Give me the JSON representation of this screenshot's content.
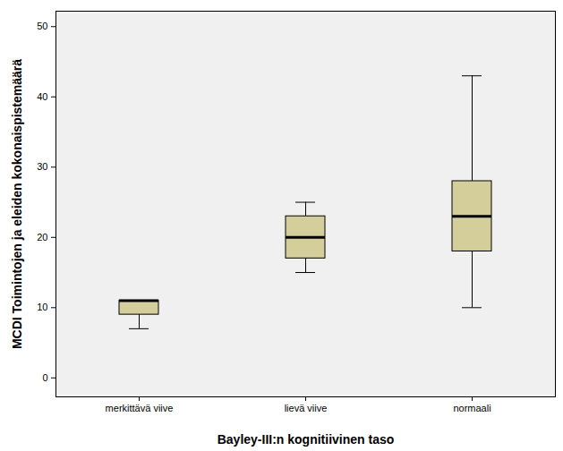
{
  "chart_data": {
    "type": "box",
    "x_label": "Bayley-III:n kognitiivinen taso",
    "y_label": "MCDI Toimintojen ja eleiden kokonaispistemäärä",
    "categories": [
      "merkittävä viive",
      "lievä viive",
      "normaali"
    ],
    "min": [
      7,
      15,
      10
    ],
    "q1": [
      9,
      17,
      18
    ],
    "median": [
      11,
      20,
      23
    ],
    "q3": [
      11,
      23,
      28
    ],
    "max": [
      11,
      25,
      43
    ],
    "color": "#d3ce9a",
    "ylim": [
      -2.7,
      52.2
    ],
    "yticks": [
      0,
      10,
      20,
      30,
      40,
      50
    ],
    "grid": false
  }
}
